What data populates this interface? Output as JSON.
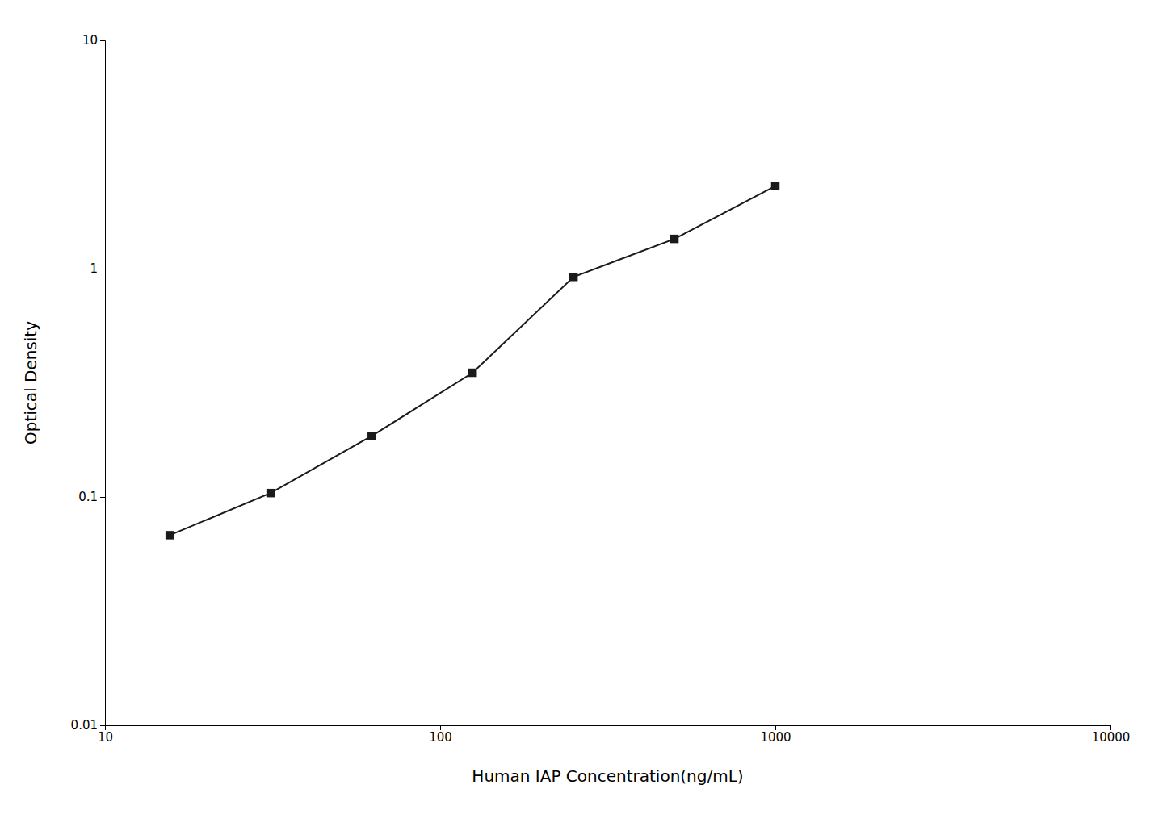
{
  "chart_data": {
    "type": "line",
    "x": [
      15.6,
      31.2,
      62.5,
      125,
      250,
      500,
      1000
    ],
    "values": [
      0.068,
      0.104,
      0.185,
      0.35,
      0.92,
      1.35,
      2.3
    ],
    "xlabel": "Human IAP Concentration(ng/mL)",
    "ylabel": "Optical Density",
    "xlim": [
      10,
      10000
    ],
    "ylim": [
      0.01,
      10
    ],
    "xticks": [
      10,
      100,
      1000,
      10000
    ],
    "yticks": [
      0.01,
      0.1,
      1,
      10
    ],
    "log": true,
    "grid": false,
    "color": "#1a1a1a",
    "marker": "square",
    "line_style": "solid"
  }
}
